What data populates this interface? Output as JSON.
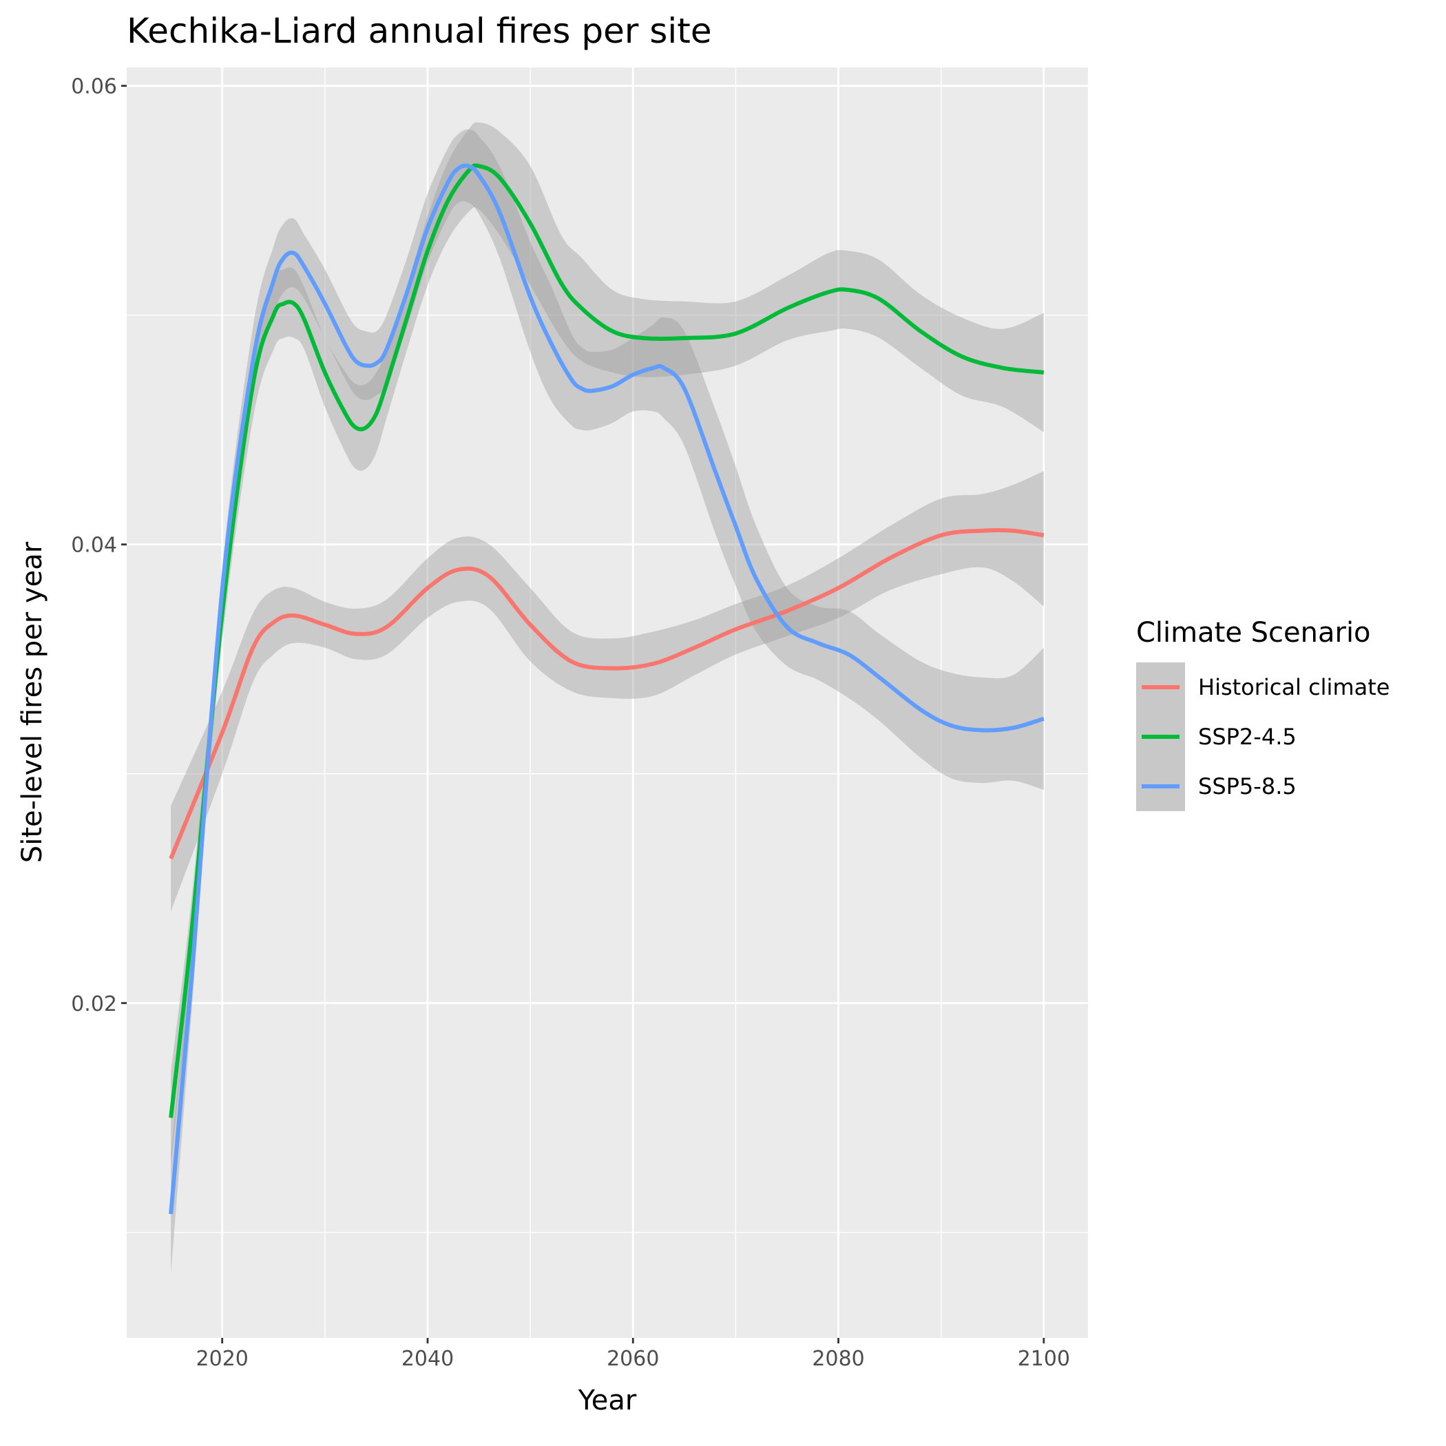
{
  "chart_data": {
    "type": "line",
    "title": "Kechika-Liard annual fires per site",
    "xlabel": "Year",
    "ylabel": "Site-level fires per year",
    "xlim": [
      2010.7,
      2104.3
    ],
    "ylim": [
      0.0054,
      0.0608
    ],
    "x_ticks": [
      2020,
      2040,
      2060,
      2080,
      2100
    ],
    "x_tick_labels": [
      "2020",
      "2040",
      "2060",
      "2080",
      "2100"
    ],
    "y_ticks": [
      0.02,
      0.04,
      0.06
    ],
    "y_tick_labels": [
      "0.02",
      "0.04",
      "0.06"
    ],
    "grid": true,
    "legend": {
      "title": "Climate Scenario",
      "position": "right"
    },
    "series": [
      {
        "name": "Historical climate",
        "color": "#F8766D",
        "x": [
          2015,
          2020,
          2023,
          2025,
          2027,
          2030,
          2033,
          2036,
          2040,
          2043,
          2046,
          2050,
          2054,
          2058,
          2062,
          2066,
          2070,
          2075,
          2080,
          2085,
          2090,
          2094,
          2097,
          2100
        ],
        "y": [
          0.0263,
          0.0318,
          0.0355,
          0.0366,
          0.0369,
          0.0365,
          0.0361,
          0.0364,
          0.0381,
          0.0389,
          0.0386,
          0.0365,
          0.0349,
          0.0346,
          0.0348,
          0.0355,
          0.0363,
          0.0371,
          0.0381,
          0.0394,
          0.0404,
          0.0406,
          0.0406,
          0.0404
        ],
        "lower": [
          0.024,
          0.03,
          0.034,
          0.0352,
          0.0357,
          0.0355,
          0.035,
          0.0352,
          0.0368,
          0.0375,
          0.0372,
          0.0349,
          0.0336,
          0.0333,
          0.0334,
          0.0343,
          0.0352,
          0.036,
          0.0368,
          0.038,
          0.0387,
          0.039,
          0.0384,
          0.0373
        ],
        "upper": [
          0.0286,
          0.0336,
          0.037,
          0.038,
          0.0381,
          0.0375,
          0.0372,
          0.0376,
          0.0394,
          0.0403,
          0.04,
          0.0381,
          0.0362,
          0.0359,
          0.0362,
          0.0367,
          0.0374,
          0.0382,
          0.0394,
          0.0408,
          0.042,
          0.0422,
          0.0426,
          0.0432
        ]
      },
      {
        "name": "SSP2-4.5",
        "color": "#00BA38",
        "x": [
          2015,
          2017,
          2020,
          2023,
          2025,
          2026,
          2027,
          2028,
          2030,
          2032,
          2033,
          2034,
          2035,
          2036,
          2038,
          2040,
          2042,
          2044,
          2045,
          2047,
          2050,
          2053,
          2055,
          2058,
          2061,
          2065,
          2070,
          2075,
          2079,
          2081,
          2084,
          2088,
          2092,
          2096,
          2100
        ],
        "y": [
          0.015,
          0.023,
          0.037,
          0.047,
          0.05,
          0.0505,
          0.0505,
          0.0498,
          0.0475,
          0.0457,
          0.0451,
          0.0451,
          0.0457,
          0.047,
          0.0499,
          0.0528,
          0.055,
          0.0563,
          0.0565,
          0.056,
          0.054,
          0.0514,
          0.0503,
          0.0493,
          0.049,
          0.049,
          0.0492,
          0.0503,
          0.051,
          0.0511,
          0.0507,
          0.0493,
          0.0482,
          0.0477,
          0.0475
        ],
        "lower": [
          0.013,
          0.0215,
          0.0358,
          0.0455,
          0.0485,
          0.049,
          0.049,
          0.0485,
          0.046,
          0.044,
          0.0433,
          0.0433,
          0.044,
          0.0455,
          0.0485,
          0.0513,
          0.0533,
          0.0545,
          0.0546,
          0.0535,
          0.0513,
          0.049,
          0.048,
          0.0475,
          0.0473,
          0.0474,
          0.0478,
          0.0489,
          0.0493,
          0.0494,
          0.049,
          0.0477,
          0.0465,
          0.046,
          0.0449
        ],
        "upper": [
          0.017,
          0.0245,
          0.0382,
          0.0485,
          0.0515,
          0.052,
          0.052,
          0.0512,
          0.049,
          0.0475,
          0.047,
          0.047,
          0.0475,
          0.0485,
          0.0513,
          0.0543,
          0.0567,
          0.0581,
          0.0584,
          0.058,
          0.0565,
          0.0535,
          0.0525,
          0.0511,
          0.0507,
          0.0506,
          0.0506,
          0.0517,
          0.0527,
          0.0528,
          0.0524,
          0.0509,
          0.0499,
          0.0494,
          0.0501
        ]
      },
      {
        "name": "SSP5-8.5",
        "color": "#619CFF",
        "x": [
          2015,
          2017,
          2020,
          2023,
          2025,
          2026,
          2027,
          2028,
          2030,
          2032,
          2033,
          2034,
          2035,
          2036,
          2038,
          2040,
          2042,
          2043,
          2044,
          2045,
          2047,
          2050,
          2052,
          2054,
          2055,
          2056,
          2058,
          2060,
          2062,
          2063,
          2065,
          2068,
          2070,
          2072,
          2075,
          2078,
          2081,
          2084,
          2088,
          2091,
          2094,
          2097,
          2100
        ],
        "y": [
          0.0108,
          0.021,
          0.038,
          0.048,
          0.0515,
          0.0525,
          0.0527,
          0.0521,
          0.0505,
          0.0487,
          0.048,
          0.0478,
          0.0479,
          0.0485,
          0.051,
          0.0538,
          0.0558,
          0.0564,
          0.0565,
          0.0561,
          0.0545,
          0.0508,
          0.0488,
          0.0472,
          0.0468,
          0.0467,
          0.0469,
          0.0474,
          0.0477,
          0.0477,
          0.0468,
          0.0432,
          0.0408,
          0.0385,
          0.0364,
          0.0357,
          0.0352,
          0.0342,
          0.0328,
          0.0321,
          0.0319,
          0.032,
          0.0324
        ],
        "lower": [
          0.0082,
          0.0195,
          0.037,
          0.0465,
          0.05,
          0.051,
          0.0512,
          0.0507,
          0.049,
          0.0472,
          0.0465,
          0.0463,
          0.0465,
          0.047,
          0.0495,
          0.0523,
          0.0543,
          0.0549,
          0.0549,
          0.0544,
          0.0525,
          0.0484,
          0.0463,
          0.0452,
          0.045,
          0.045,
          0.0453,
          0.0458,
          0.0458,
          0.0455,
          0.0443,
          0.0405,
          0.0382,
          0.0362,
          0.0347,
          0.0341,
          0.0333,
          0.0323,
          0.0307,
          0.0298,
          0.0296,
          0.0297,
          0.0293
        ],
        "upper": [
          0.0134,
          0.0225,
          0.039,
          0.0495,
          0.053,
          0.054,
          0.0542,
          0.0535,
          0.052,
          0.0502,
          0.0495,
          0.0493,
          0.0493,
          0.05,
          0.0525,
          0.0553,
          0.0573,
          0.0579,
          0.0581,
          0.0578,
          0.0565,
          0.0532,
          0.0513,
          0.0492,
          0.0486,
          0.0484,
          0.0485,
          0.049,
          0.0496,
          0.0499,
          0.0493,
          0.0459,
          0.0434,
          0.0408,
          0.0381,
          0.0373,
          0.0371,
          0.0361,
          0.0349,
          0.0344,
          0.0342,
          0.0343,
          0.0355
        ]
      }
    ]
  }
}
